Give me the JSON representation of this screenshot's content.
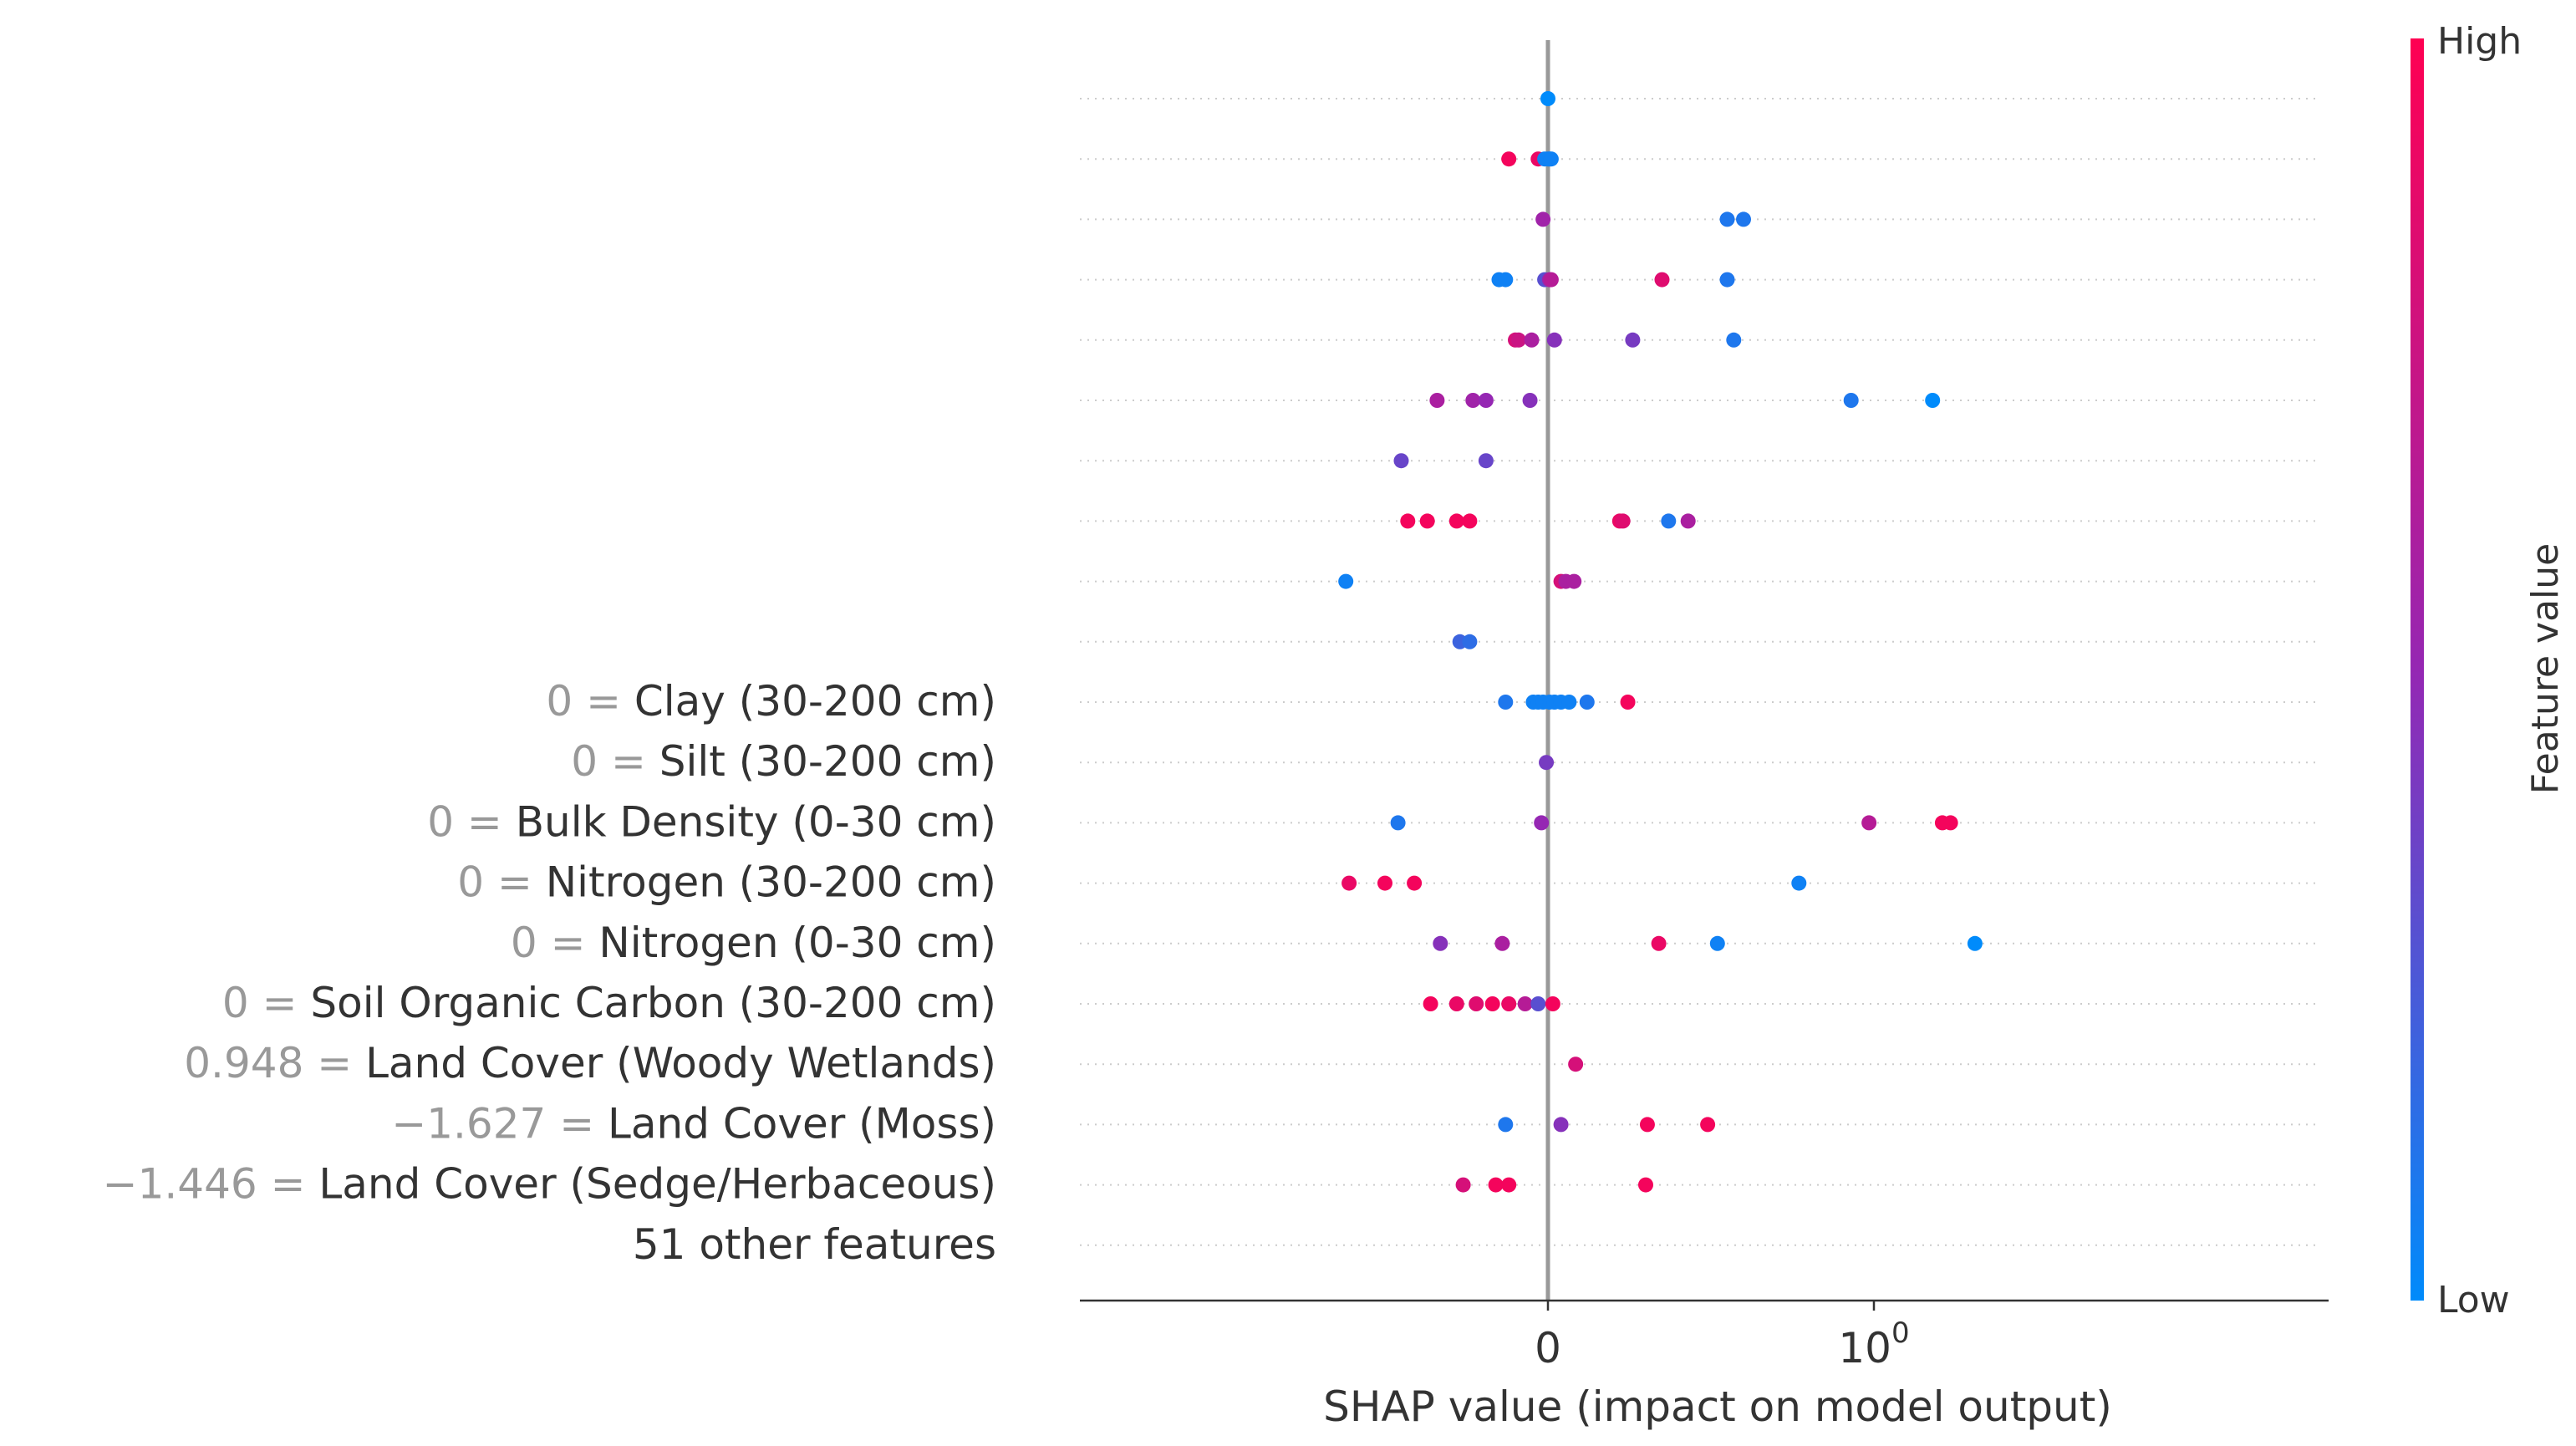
{
  "chart_data": {
    "type": "scatter",
    "subtype": "shap-beeswarm",
    "xlabel": "SHAP value (impact on model output)",
    "x_scale": "symlog",
    "x_ticks": [
      0,
      1
    ],
    "x_tick_labels": [
      "0",
      "10"
    ],
    "x_tick_exponent": "0",
    "xlim": [
      -0.73,
      1.33
    ],
    "grid": "dotted horizontal per row",
    "colorbar": {
      "label": "Feature value",
      "high": "High",
      "low": "Low",
      "high_color": "#ff0052",
      "low_color": "#008bfb"
    },
    "rows": [
      {
        "value": "",
        "name": "",
        "points": [
          {
            "x": 0.0,
            "c": 0.0
          }
        ]
      },
      {
        "value": "",
        "name": "",
        "points": [
          {
            "x": -0.12,
            "c": 0.95
          },
          {
            "x": -0.03,
            "c": 0.9
          },
          {
            "x": -0.01,
            "c": 0.05
          },
          {
            "x": 0.0,
            "c": 0.05
          },
          {
            "x": 0.005,
            "c": 0.05
          },
          {
            "x": 0.01,
            "c": 0.05
          }
        ]
      },
      {
        "value": "",
        "name": "",
        "points": [
          {
            "x": -0.015,
            "c": 0.55
          },
          {
            "x": 0.55,
            "c": 0.1
          },
          {
            "x": 0.6,
            "c": 0.1
          }
        ]
      },
      {
        "value": "",
        "name": "",
        "points": [
          {
            "x": -0.15,
            "c": 0.05
          },
          {
            "x": -0.13,
            "c": 0.05
          },
          {
            "x": -0.01,
            "c": 0.3
          },
          {
            "x": 0.005,
            "c": 0.55
          },
          {
            "x": 0.01,
            "c": 0.65
          },
          {
            "x": 0.35,
            "c": 0.85
          },
          {
            "x": 0.55,
            "c": 0.1
          }
        ]
      },
      {
        "value": "",
        "name": "",
        "points": [
          {
            "x": -0.1,
            "c": 0.8
          },
          {
            "x": -0.09,
            "c": 0.75
          },
          {
            "x": -0.05,
            "c": 0.6
          },
          {
            "x": 0.02,
            "c": 0.45
          },
          {
            "x": 0.26,
            "c": 0.4
          },
          {
            "x": 0.57,
            "c": 0.1
          }
        ]
      },
      {
        "value": "",
        "name": "",
        "points": [
          {
            "x": -0.34,
            "c": 0.6
          },
          {
            "x": -0.23,
            "c": 0.55
          },
          {
            "x": -0.19,
            "c": 0.5
          },
          {
            "x": -0.055,
            "c": 0.45
          },
          {
            "x": 0.93,
            "c": 0.1
          },
          {
            "x": 1.18,
            "c": 0.0
          }
        ]
      },
      {
        "value": "",
        "name": "",
        "points": [
          {
            "x": -0.45,
            "c": 0.35
          },
          {
            "x": -0.19,
            "c": 0.35
          }
        ]
      },
      {
        "value": "",
        "name": "",
        "points": [
          {
            "x": -0.43,
            "c": 0.95
          },
          {
            "x": -0.37,
            "c": 0.95
          },
          {
            "x": -0.28,
            "c": 0.95
          },
          {
            "x": -0.24,
            "c": 0.95
          },
          {
            "x": 0.22,
            "c": 0.9
          },
          {
            "x": 0.23,
            "c": 0.85
          },
          {
            "x": 0.37,
            "c": 0.1
          },
          {
            "x": 0.43,
            "c": 0.6
          }
        ]
      },
      {
        "value": "",
        "name": "",
        "points": [
          {
            "x": -0.62,
            "c": 0.05
          },
          {
            "x": 0.04,
            "c": 0.8
          },
          {
            "x": 0.055,
            "c": 0.6
          },
          {
            "x": 0.08,
            "c": 0.6
          }
        ]
      },
      {
        "value": "",
        "name": "",
        "points": [
          {
            "x": -0.27,
            "c": 0.2
          },
          {
            "x": -0.24,
            "c": 0.15
          }
        ]
      },
      {
        "value": "0",
        "name": "Clay (30-200 cm)",
        "points": [
          {
            "x": -0.13,
            "c": 0.1
          },
          {
            "x": -0.045,
            "c": 0.05
          },
          {
            "x": -0.03,
            "c": 0.05
          },
          {
            "x": -0.015,
            "c": 0.05
          },
          {
            "x": 0.005,
            "c": 0.05
          },
          {
            "x": 0.02,
            "c": 0.05
          },
          {
            "x": 0.04,
            "c": 0.05
          },
          {
            "x": 0.065,
            "c": 0.05
          },
          {
            "x": 0.12,
            "c": 0.1
          },
          {
            "x": 0.245,
            "c": 0.95
          }
        ]
      },
      {
        "value": "0",
        "name": "Silt (30-200 cm)",
        "points": [
          {
            "x": -0.005,
            "c": 0.4
          }
        ]
      },
      {
        "value": "0",
        "name": "Bulk Density (0-30 cm)",
        "points": [
          {
            "x": -0.46,
            "c": 0.1
          },
          {
            "x": -0.02,
            "c": 0.5
          },
          {
            "x": 0.985,
            "c": 0.65
          },
          {
            "x": 1.21,
            "c": 0.95
          },
          {
            "x": 1.235,
            "c": 0.95
          }
        ]
      },
      {
        "value": "0",
        "name": "Nitrogen (30-200 cm)",
        "points": [
          {
            "x": -0.61,
            "c": 0.9
          },
          {
            "x": -0.5,
            "c": 0.95
          },
          {
            "x": -0.41,
            "c": 0.95
          },
          {
            "x": 0.77,
            "c": 0.05
          }
        ]
      },
      {
        "value": "0",
        "name": "Nitrogen (0-30 cm)",
        "points": [
          {
            "x": -0.33,
            "c": 0.45
          },
          {
            "x": -0.14,
            "c": 0.6
          },
          {
            "x": 0.34,
            "c": 0.9
          },
          {
            "x": 0.52,
            "c": 0.05
          },
          {
            "x": 1.31,
            "c": 0.0
          }
        ]
      },
      {
        "value": "0",
        "name": "Soil Organic Carbon (30-200 cm)",
        "points": [
          {
            "x": -0.36,
            "c": 0.95
          },
          {
            "x": -0.28,
            "c": 0.9
          },
          {
            "x": -0.22,
            "c": 0.85
          },
          {
            "x": -0.17,
            "c": 0.95
          },
          {
            "x": -0.12,
            "c": 0.9
          },
          {
            "x": -0.07,
            "c": 0.65
          },
          {
            "x": -0.03,
            "c": 0.3
          },
          {
            "x": 0.015,
            "c": 0.95
          }
        ]
      },
      {
        "value": "0.948",
        "name": "Land Cover (Woody Wetlands)",
        "points": [
          {
            "x": 0.085,
            "c": 0.8
          }
        ]
      },
      {
        "value": "−1.627",
        "name": "Land Cover (Moss)",
        "points": [
          {
            "x": -0.13,
            "c": 0.1
          },
          {
            "x": 0.04,
            "c": 0.45
          },
          {
            "x": 0.305,
            "c": 0.95
          },
          {
            "x": 0.49,
            "c": 0.95
          }
        ]
      },
      {
        "value": "−1.446",
        "name": "Land Cover (Sedge/Herbaceous)",
        "points": [
          {
            "x": -0.26,
            "c": 0.8
          },
          {
            "x": -0.16,
            "c": 0.95
          },
          {
            "x": -0.12,
            "c": 0.95
          },
          {
            "x": 0.3,
            "c": 0.95
          }
        ]
      },
      {
        "value": "",
        "name": "51 other features",
        "points": []
      }
    ]
  }
}
